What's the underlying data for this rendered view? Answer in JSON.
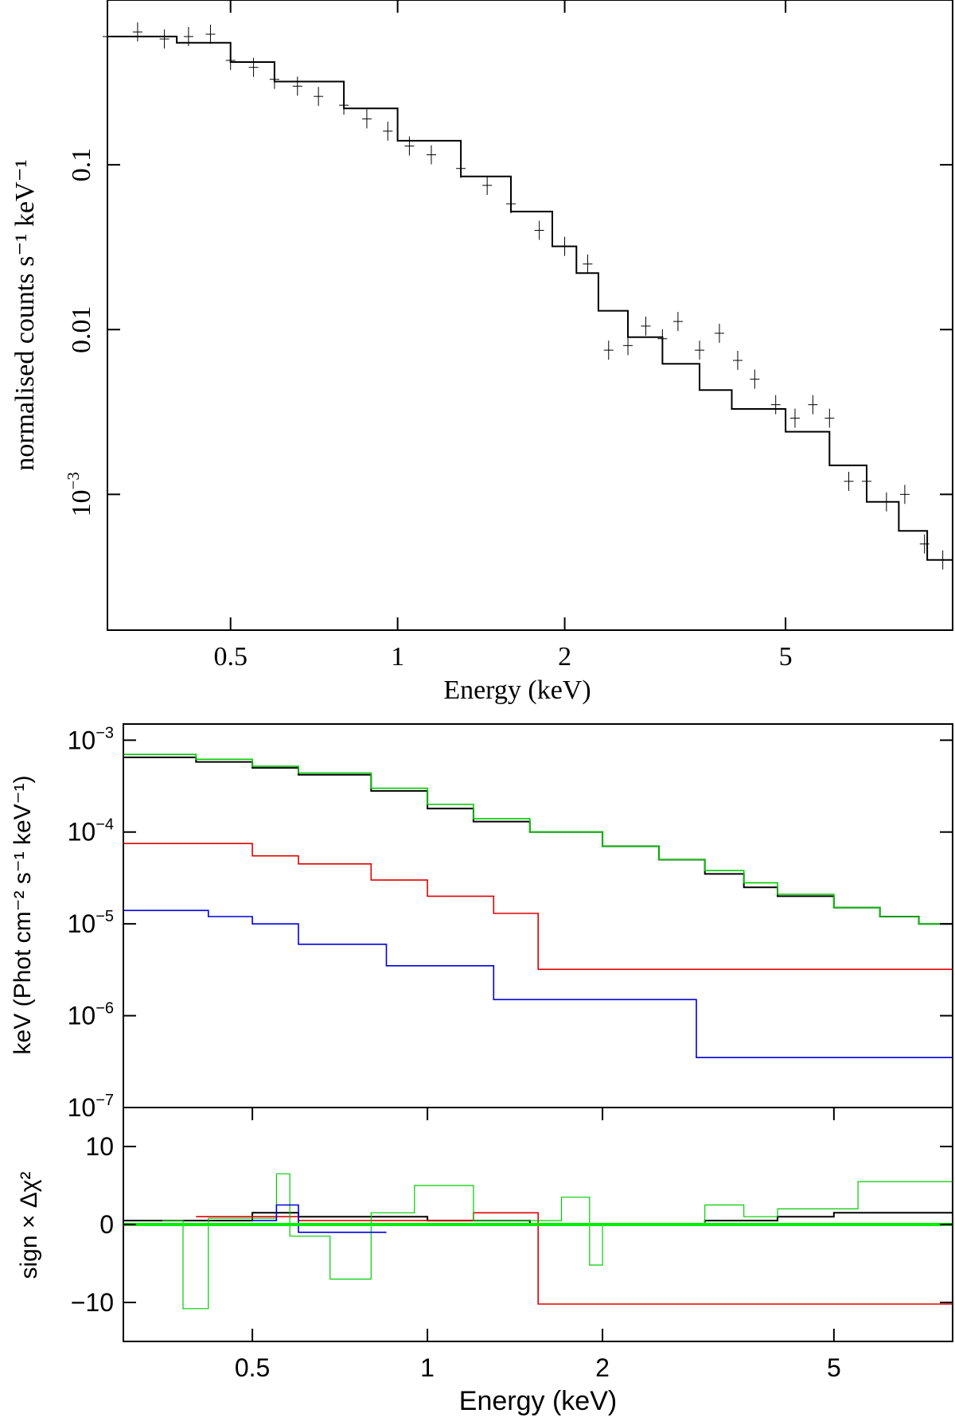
{
  "chart_data": [
    {
      "type": "line",
      "title": "",
      "xlabel": "Energy (keV)",
      "ylabel": "normalised counts s⁻¹ keV⁻¹",
      "xscale": "log",
      "yscale": "log",
      "xlim": [
        0.3,
        10
      ],
      "ylim": [
        0.00015,
        1.0
      ],
      "x_ticks": [
        {
          "value": 0.5,
          "label": "0.5"
        },
        {
          "value": 1,
          "label": "1"
        },
        {
          "value": 2,
          "label": "2"
        },
        {
          "value": 5,
          "label": "5"
        }
      ],
      "y_ticks": [
        {
          "value": 0.001,
          "label": "10",
          "sup": "−3"
        },
        {
          "value": 0.01,
          "label": "0.01"
        },
        {
          "value": 0.1,
          "label": "0.1"
        }
      ],
      "series": [
        {
          "name": "model",
          "color": "#000000",
          "x": [
            0.3,
            0.4,
            0.5,
            0.6,
            0.8,
            1.0,
            1.3,
            1.6,
            1.9,
            2.1,
            2.3,
            2.6,
            3.0,
            3.5,
            4.0,
            5.0,
            6.0,
            7.0,
            8.0,
            9.0,
            10.0
          ],
          "y": [
            0.6,
            0.55,
            0.42,
            0.32,
            0.22,
            0.14,
            0.085,
            0.052,
            0.032,
            0.022,
            0.013,
            0.009,
            0.0062,
            0.0043,
            0.0033,
            0.0024,
            0.0015,
            0.0009,
            0.0006,
            0.0004,
            0.0002
          ]
        },
        {
          "name": "data",
          "color": "#000000",
          "x": [
            0.3,
            0.34,
            0.38,
            0.42,
            0.46,
            0.5,
            0.55,
            0.6,
            0.66,
            0.72,
            0.8,
            0.88,
            0.96,
            1.05,
            1.15,
            1.3,
            1.45,
            1.6,
            1.8,
            2.0,
            2.2,
            2.4,
            2.6,
            2.8,
            3.0,
            3.2,
            3.5,
            3.8,
            4.1,
            4.4,
            4.8,
            5.2,
            5.6,
            6.0,
            6.5,
            7.0,
            7.6,
            8.2,
            8.9,
            9.6
          ],
          "y": [
            0.6,
            0.64,
            0.58,
            0.6,
            0.62,
            0.43,
            0.39,
            0.33,
            0.3,
            0.26,
            0.23,
            0.19,
            0.16,
            0.13,
            0.115,
            0.095,
            0.075,
            0.058,
            0.04,
            0.032,
            0.025,
            0.0075,
            0.008,
            0.0105,
            0.0088,
            0.0112,
            0.0075,
            0.0095,
            0.0065,
            0.005,
            0.0035,
            0.0029,
            0.0035,
            0.0029,
            0.0012,
            0.0012,
            0.0009,
            0.001,
            0.0005,
            0.0004
          ]
        }
      ]
    },
    {
      "type": "line",
      "title": "",
      "xlabel": "",
      "ylabel": "keV (Phot cm⁻² s⁻¹ keV⁻¹)",
      "xscale": "log",
      "yscale": "log",
      "xlim": [
        0.3,
        8.0
      ],
      "ylim": [
        1e-07,
        0.0015
      ],
      "x_ticks": [],
      "y_ticks": [
        {
          "value": 1e-07,
          "label": "10",
          "sup": "−7"
        },
        {
          "value": 1e-06,
          "label": "10",
          "sup": "−6"
        },
        {
          "value": 1e-05,
          "label": "10",
          "sup": "−5"
        },
        {
          "value": 0.0001,
          "label": "10",
          "sup": "−4"
        },
        {
          "value": 0.001,
          "label": "10",
          "sup": "−3"
        }
      ],
      "series": [
        {
          "name": "black model",
          "color": "#000000",
          "x": [
            0.3,
            0.4,
            0.5,
            0.6,
            0.8,
            1.0,
            1.2,
            1.5,
            2.0,
            2.5,
            3.0,
            3.5,
            4.0,
            5.0,
            6.0,
            7.0,
            8.0
          ],
          "y": [
            0.00065,
            0.00058,
            0.0005,
            0.00042,
            0.00028,
            0.00018,
            0.00013,
            0.0001,
            7e-05,
            5e-05,
            3.5e-05,
            2.5e-05,
            2e-05,
            1.5e-05,
            1.2e-05,
            1e-05,
            9e-06
          ]
        },
        {
          "name": "green model",
          "color": "#00cc00",
          "x": [
            0.3,
            0.4,
            0.5,
            0.6,
            0.8,
            1.0,
            1.2,
            1.5,
            2.0,
            2.5,
            3.0,
            3.5,
            4.0,
            5.0,
            6.0,
            7.0,
            8.0
          ],
          "y": [
            0.0007,
            0.00062,
            0.00052,
            0.00044,
            0.0003,
            0.0002,
            0.00014,
            0.0001,
            7e-05,
            5e-05,
            3.8e-05,
            2.8e-05,
            2.1e-05,
            1.5e-05,
            1.2e-05,
            1e-05,
            8.5e-06
          ]
        },
        {
          "name": "red model",
          "color": "#e00000",
          "x": [
            0.3,
            0.5,
            0.6,
            0.8,
            1.0,
            1.3,
            1.55,
            8.0
          ],
          "y": [
            7.5e-05,
            5.5e-05,
            4.5e-05,
            3e-05,
            2e-05,
            1.3e-05,
            3.2e-06,
            3.2e-06
          ]
        },
        {
          "name": "blue model",
          "color": "#0000dd",
          "x": [
            0.3,
            0.42,
            0.5,
            0.6,
            0.85,
            1.3,
            2.9,
            8.0
          ],
          "y": [
            1.4e-05,
            1.2e-05,
            1e-05,
            6e-06,
            3.5e-06,
            1.5e-06,
            3.5e-07,
            3.5e-07
          ]
        }
      ]
    },
    {
      "type": "line",
      "title": "",
      "xlabel": "Energy (keV)",
      "ylabel": "sign × Δχ²",
      "xscale": "log",
      "yscale": "linear",
      "xlim": [
        0.3,
        8.0
      ],
      "ylim": [
        -15,
        15
      ],
      "x_ticks": [
        {
          "value": 0.5,
          "label": "0.5"
        },
        {
          "value": 1,
          "label": "1"
        },
        {
          "value": 2,
          "label": "2"
        },
        {
          "value": 5,
          "label": "5"
        }
      ],
      "y_ticks": [
        {
          "value": -10,
          "label": "−10"
        },
        {
          "value": 0,
          "label": "0"
        },
        {
          "value": 10,
          "label": "10"
        }
      ],
      "series": [
        {
          "name": "black residuals",
          "color": "#000000",
          "x": [
            0.3,
            0.5,
            0.6,
            0.8,
            1.0,
            1.5,
            2.0,
            3.0,
            4.0,
            5.0,
            6.0,
            8.0
          ],
          "y": [
            0.5,
            1.5,
            1.0,
            1.0,
            0.5,
            0.0,
            0.0,
            0.5,
            1.0,
            1.5,
            1.5,
            1.5
          ]
        },
        {
          "name": "red residuals",
          "color": "#e00000",
          "x": [
            0.4,
            0.6,
            1.2,
            1.55,
            8.0
          ],
          "y": [
            1.0,
            0.5,
            1.5,
            -10.2,
            -10.2
          ]
        },
        {
          "name": "green residuals",
          "color": "#00cc00",
          "x": [
            0.35,
            0.38,
            0.42,
            0.55,
            0.58,
            0.68,
            0.8,
            0.95,
            1.2,
            1.7,
            1.9,
            2.0,
            3.0,
            3.5,
            4.0,
            5.5,
            8.0
          ],
          "y": [
            0.5,
            -10.8,
            0.8,
            6.5,
            -1.5,
            -7.0,
            1.5,
            5.0,
            0.5,
            3.5,
            -5.2,
            0.0,
            2.5,
            1.0,
            2.0,
            5.5,
            5.5
          ]
        },
        {
          "name": "blue residuals",
          "color": "#0000dd",
          "x": [
            0.5,
            0.55,
            0.6,
            0.85
          ],
          "y": [
            0.5,
            2.5,
            -1.0,
            -1.0
          ]
        }
      ]
    }
  ]
}
